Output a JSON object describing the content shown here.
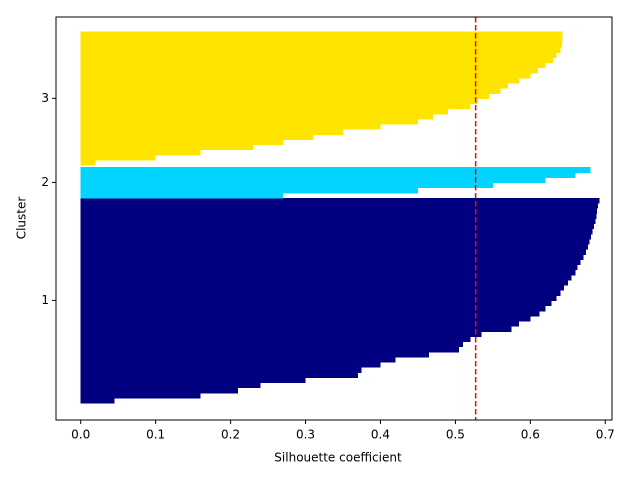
{
  "chart_data": {
    "type": "silhouette",
    "xlabel": "Silhouette coefficient",
    "ylabel": "Cluster",
    "xlim": [
      -0.033,
      0.709
    ],
    "xticks": [
      {
        "value": 0,
        "label": "0.0"
      },
      0.1,
      0.2,
      0.3,
      0.4,
      0.5,
      0.6,
      0.7
    ],
    "series": [
      {
        "name": "1",
        "color": "#000080",
        "values": [
          0.045,
          0.16,
          0.21,
          0.24,
          0.3,
          0.37,
          0.375,
          0.4,
          0.42,
          0.465,
          0.505,
          0.51,
          0.52,
          0.535,
          0.575,
          0.585,
          0.6,
          0.612,
          0.62,
          0.628,
          0.635,
          0.64,
          0.645,
          0.65,
          0.655,
          0.66,
          0.663,
          0.667,
          0.671,
          0.674,
          0.677,
          0.679,
          0.681,
          0.683,
          0.685,
          0.687,
          0.688,
          0.689,
          0.69,
          0.692
        ]
      },
      {
        "name": "2",
        "color": "#00d4ff",
        "values": [
          0.27,
          0.45,
          0.55,
          0.62,
          0.66,
          0.68
        ]
      },
      {
        "name": "3",
        "color": "#ffe400",
        "values": [
          0.02,
          0.1,
          0.16,
          0.23,
          0.27,
          0.31,
          0.35,
          0.4,
          0.45,
          0.47,
          0.49,
          0.52,
          0.53,
          0.545,
          0.56,
          0.57,
          0.585,
          0.6,
          0.61,
          0.62,
          0.63,
          0.635,
          0.64,
          0.642,
          0.643,
          0.643
        ]
      }
    ],
    "average_line": {
      "value": 0.527,
      "color": "#ff0000"
    }
  }
}
